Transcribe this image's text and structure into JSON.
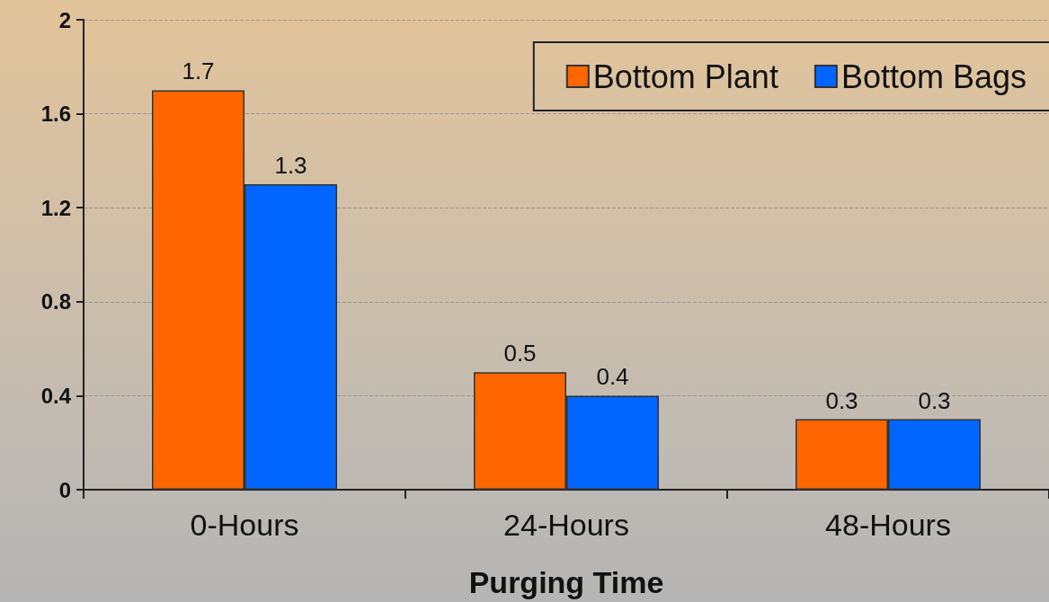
{
  "chart_data": {
    "type": "bar",
    "categories": [
      "0-Hours",
      "24-Hours",
      "48-Hours"
    ],
    "xlabel": "Purging Time",
    "series": [
      {
        "name": "Bottom Plant",
        "color": "#ff6600",
        "values": [
          1.7,
          0.5,
          0.3
        ]
      },
      {
        "name": "Bottom Bags",
        "color": "#0066ff",
        "values": [
          1.3,
          0.4,
          0.3
        ]
      }
    ],
    "ylim": [
      0,
      2
    ],
    "yticks": [
      0,
      0.4,
      0.8,
      1.2,
      1.6,
      2
    ],
    "grid": "y",
    "legend": "top right",
    "data_labels": true
  }
}
